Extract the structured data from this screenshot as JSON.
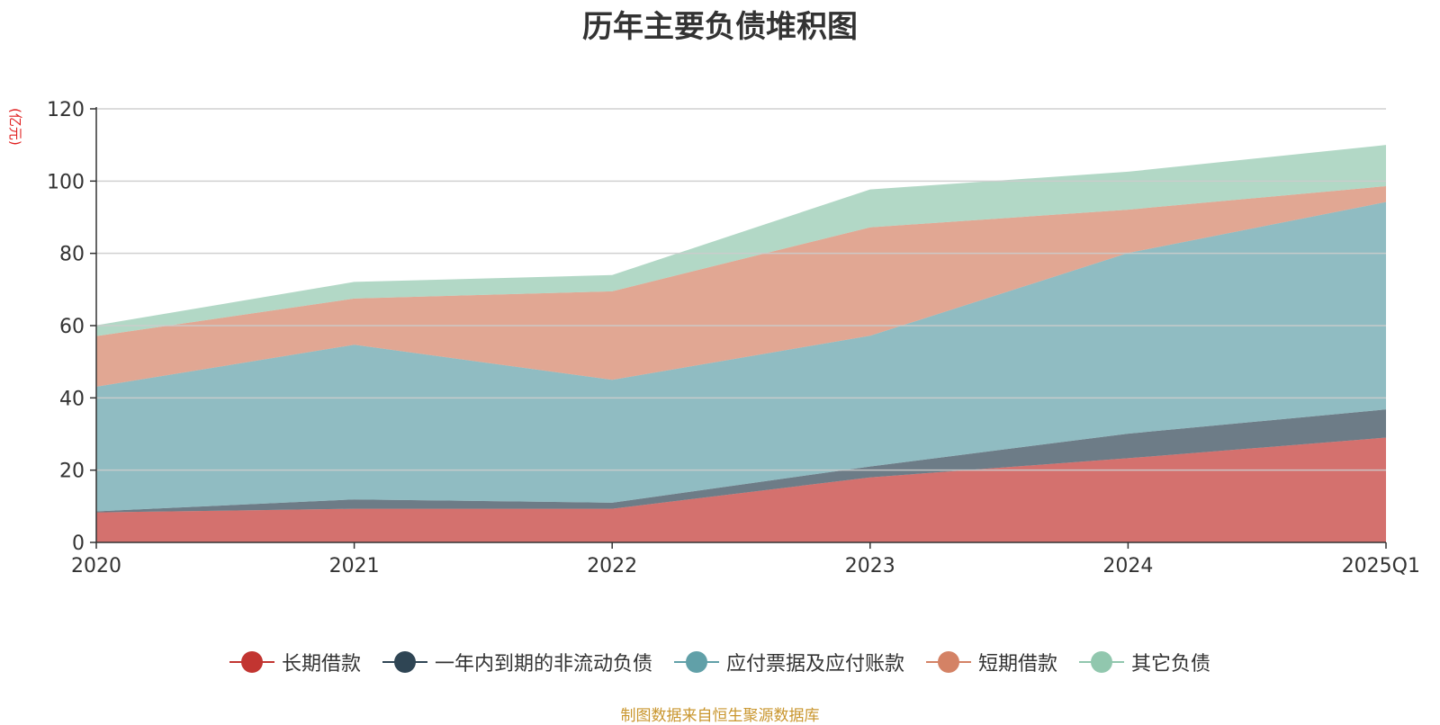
{
  "title": "历年主要负债堆积图",
  "source_note": "制图数据来自恒生聚源数据库",
  "chart_data": {
    "type": "area",
    "stacked": true,
    "title": "历年主要负债堆积图",
    "unit": "(亿元)",
    "categories": [
      "2020",
      "2021",
      "2022",
      "2023",
      "2024",
      "2025Q1"
    ],
    "ylim": [
      0,
      120
    ],
    "yticks": [
      0,
      20,
      40,
      60,
      80,
      100,
      120
    ],
    "grid": true,
    "legend_position": "bottom",
    "series": [
      {
        "name": "长期借款",
        "color": "#c23531",
        "values": [
          8.3,
          9.3,
          9.3,
          18.0,
          23.3,
          29.0
        ]
      },
      {
        "name": "一年内到期的非流动负债",
        "color": "#2f4554",
        "values": [
          0.3,
          2.6,
          1.7,
          3.0,
          6.8,
          7.8
        ]
      },
      {
        "name": "应付票据及应付账款",
        "color": "#61a0a8",
        "values": [
          34.5,
          42.8,
          34.0,
          36.2,
          50.0,
          57.4
        ]
      },
      {
        "name": "短期借款",
        "color": "#d48265",
        "values": [
          14.0,
          12.8,
          24.5,
          30.0,
          12.0,
          4.4
        ]
      },
      {
        "name": "其它负债",
        "color": "#91c7ae",
        "values": [
          3.0,
          4.6,
          4.5,
          10.5,
          10.5,
          11.4
        ]
      }
    ]
  }
}
